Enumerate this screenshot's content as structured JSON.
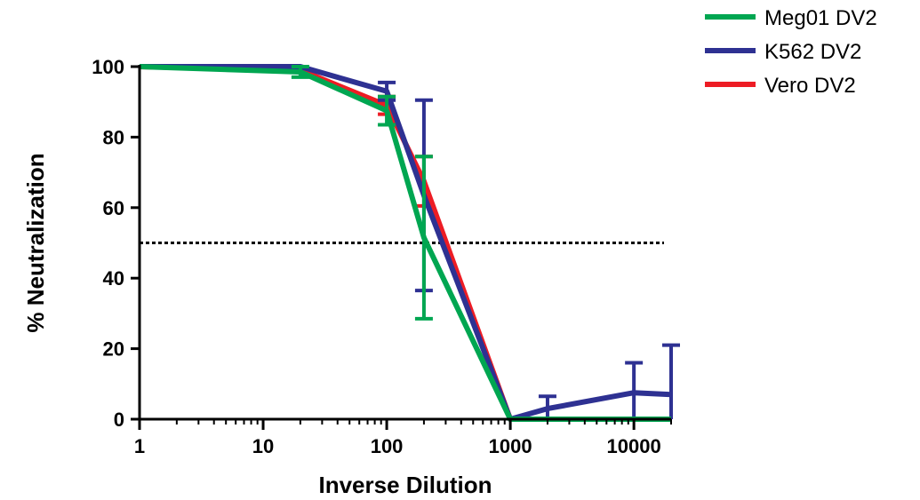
{
  "chart_data": {
    "type": "line",
    "xlabel": "Inverse Dilution",
    "ylabel": "% Neutralization",
    "x_scale": "log",
    "xlim": [
      1,
      20000
    ],
    "ylim": [
      0,
      100
    ],
    "x_ticks": [
      1,
      10,
      100,
      1000,
      10000
    ],
    "x_tick_labels": [
      "1",
      "10",
      "100",
      "1000",
      "10000"
    ],
    "y_ticks": [
      0,
      20,
      40,
      60,
      80,
      100
    ],
    "y_tick_labels": [
      "0",
      "20",
      "40",
      "60",
      "80",
      "100"
    ],
    "reference_line": {
      "y": 50,
      "x_end": 20000,
      "style": "dotted"
    },
    "legend_position": "top-right",
    "series": [
      {
        "name": "Meg01 DV2",
        "color": "#00a651",
        "x": [
          1,
          20,
          100,
          200,
          1000,
          2000,
          10000,
          20000
        ],
        "y": [
          100,
          98.5,
          87.5,
          51.5,
          0,
          0,
          0,
          0
        ],
        "error": [
          0,
          1.5,
          4,
          23,
          0,
          0,
          0,
          0
        ]
      },
      {
        "name": "K562 DV2",
        "color": "#2e3192",
        "x": [
          1,
          20,
          100,
          200,
          1000,
          2000,
          10000,
          20000
        ],
        "y": [
          100,
          100,
          93,
          63.5,
          0,
          3,
          7.5,
          7
        ],
        "error": [
          0,
          0,
          2.5,
          27,
          0,
          3.5,
          8.5,
          14
        ]
      },
      {
        "name": "Vero DV2",
        "color": "#ed1c24",
        "x": [
          1,
          20,
          100,
          200,
          1000,
          2000,
          10000,
          20000
        ],
        "y": [
          100,
          99,
          89,
          67.5,
          0,
          0,
          0,
          0
        ],
        "error": [
          0,
          0,
          2.5,
          7,
          0,
          0,
          0,
          0
        ]
      }
    ]
  }
}
